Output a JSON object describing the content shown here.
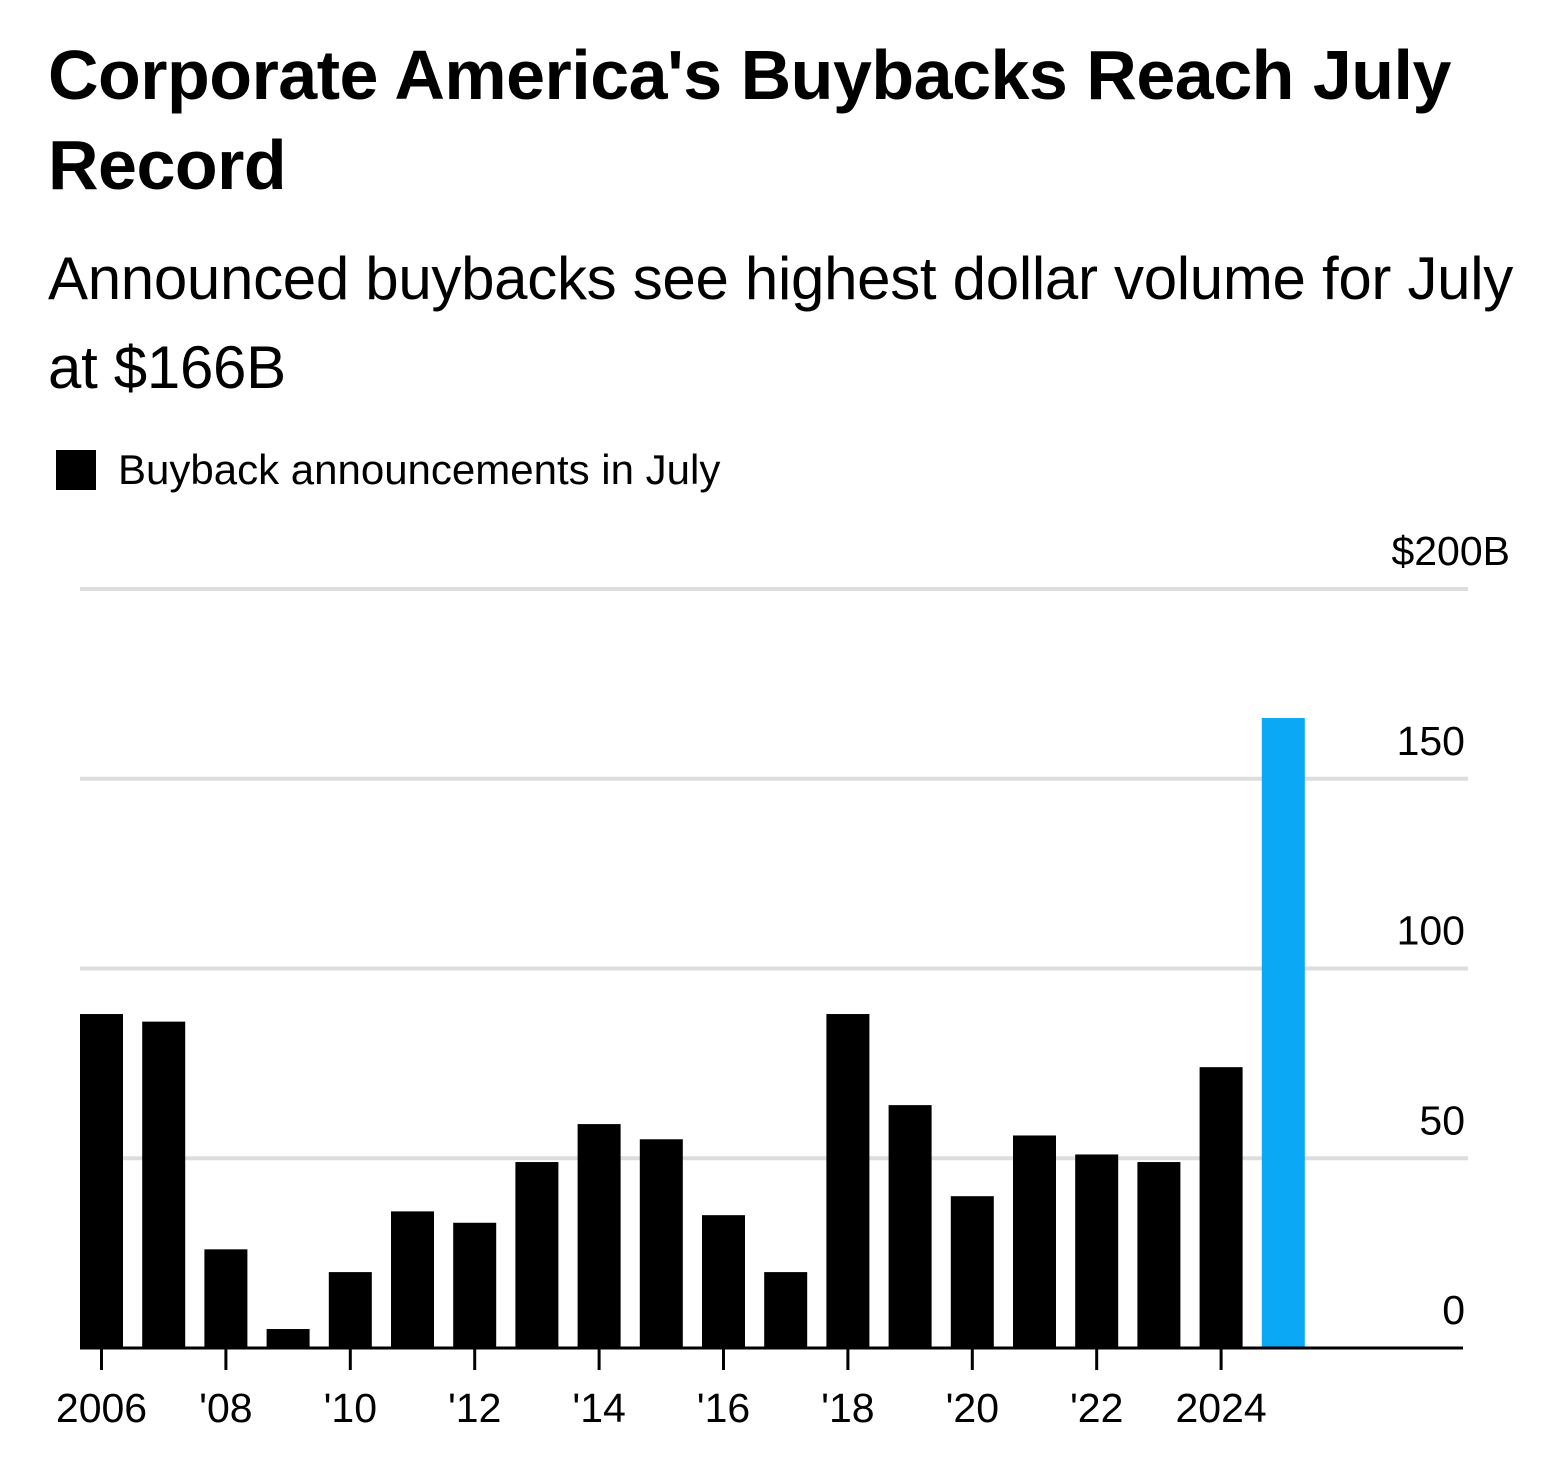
{
  "header": {
    "title": "Corporate America's Buybacks Reach July Record",
    "subtitle": "Announced buybacks see highest dollar volume for July at $166B"
  },
  "legend": {
    "items": [
      {
        "label": "Buyback announcements in July",
        "color": "#000000"
      }
    ]
  },
  "colors": {
    "bar": "#000000",
    "highlight": "#0aa8f5",
    "grid": "#dddddd",
    "axis": "#000000"
  },
  "chart_data": {
    "type": "bar",
    "title": "Corporate America's Buybacks Reach July Record",
    "subtitle": "Announced buybacks see highest dollar volume for July at $166B",
    "xlabel": "",
    "ylabel": "",
    "categories": [
      "2006",
      "2007",
      "2008",
      "2009",
      "2010",
      "2011",
      "2012",
      "2013",
      "2014",
      "2015",
      "2016",
      "2017",
      "2018",
      "2019",
      "2020",
      "2021",
      "2022",
      "2023",
      "2024",
      "2025"
    ],
    "series": [
      {
        "name": "Buyback announcements in July",
        "unit": "$B",
        "values": [
          88,
          86,
          26,
          5,
          20,
          36,
          33,
          49,
          59,
          55,
          35,
          20,
          88,
          64,
          40,
          56,
          51,
          49,
          74,
          166
        ],
        "highlight_index": 19
      }
    ],
    "ylim": [
      0,
      200
    ],
    "y_ticks": [
      {
        "value": 0,
        "label": "0"
      },
      {
        "value": 50,
        "label": "50"
      },
      {
        "value": 100,
        "label": "100"
      },
      {
        "value": 150,
        "label": "150"
      },
      {
        "value": 200,
        "label": "$200B"
      }
    ],
    "x_ticks": [
      {
        "category": "2006",
        "label": "2006"
      },
      {
        "category": "2008",
        "label": "'08"
      },
      {
        "category": "2010",
        "label": "'10"
      },
      {
        "category": "2012",
        "label": "'12"
      },
      {
        "category": "2014",
        "label": "'14"
      },
      {
        "category": "2016",
        "label": "'16"
      },
      {
        "category": "2018",
        "label": "'18"
      },
      {
        "category": "2020",
        "label": "'20"
      },
      {
        "category": "2022",
        "label": "'22"
      },
      {
        "category": "2024",
        "label": "2024"
      }
    ],
    "y_axis_position": "right",
    "grid": true,
    "legend_position": "top-left"
  }
}
